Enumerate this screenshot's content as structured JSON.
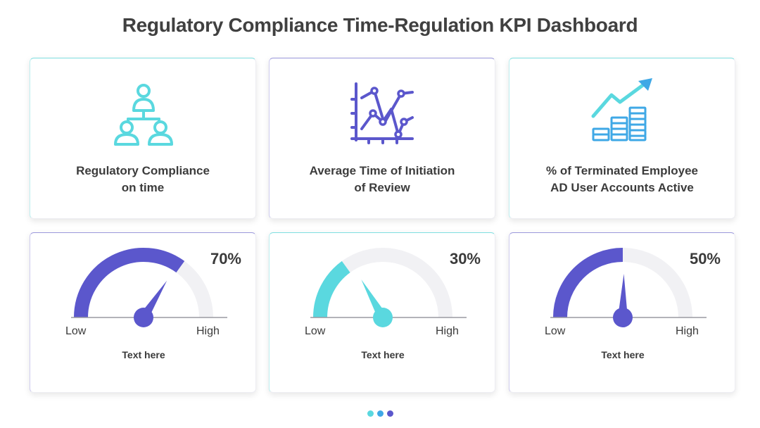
{
  "title": "Regulatory Compliance Time-Regulation KPI Dashboard",
  "kpis": [
    {
      "label_line1": "Regulatory Compliance",
      "label_line2": "on time",
      "icon": "hierarchy-people-icon"
    },
    {
      "label_line1": "Average Time of Initiation",
      "label_line2": "of Review",
      "icon": "line-chart-icon"
    },
    {
      "label_line1": "% of Terminated Employee",
      "label_line2": "AD User Accounts Active",
      "icon": "growth-money-icon"
    }
  ],
  "gauges": [
    {
      "percent_label": "70%",
      "value": 70,
      "low_label": "Low",
      "high_label": "High",
      "caption": "Text here",
      "color": "#5b57cc"
    },
    {
      "percent_label": "30%",
      "value": 30,
      "low_label": "Low",
      "high_label": "High",
      "caption": "Text here",
      "color": "#5ad8df"
    },
    {
      "percent_label": "50%",
      "value": 50,
      "low_label": "Low",
      "high_label": "High",
      "caption": "Text here",
      "color": "#5b57cc"
    }
  ],
  "colors": {
    "teal": "#5ad8df",
    "purple": "#5b57cc",
    "blue": "#3fa8e6",
    "track": "#f1f1f4"
  },
  "pager": {
    "dots": [
      "#5ad8df",
      "#3fa8e6",
      "#5b57cc"
    ]
  }
}
